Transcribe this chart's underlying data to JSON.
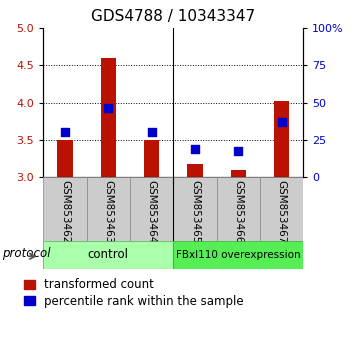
{
  "title": "GDS4788 / 10343347",
  "samples": [
    "GSM853462",
    "GSM853463",
    "GSM853464",
    "GSM853465",
    "GSM853466",
    "GSM853467"
  ],
  "red_bar_tops": [
    3.5,
    4.6,
    3.5,
    3.17,
    3.1,
    4.02
  ],
  "blue_square_y": [
    3.6,
    3.93,
    3.6,
    3.37,
    3.35,
    3.74
  ],
  "y_min": 3.0,
  "y_max": 5.0,
  "y_ticks_left": [
    3.0,
    3.5,
    4.0,
    4.5,
    5.0
  ],
  "y_ticks_right_labels": [
    "0",
    "25",
    "50",
    "75",
    "100%"
  ],
  "y_ticks_right_vals": [
    0,
    25,
    50,
    75,
    100
  ],
  "group_control_color": "#aaffaa",
  "group_overexp_color": "#55ee55",
  "group_labels": [
    "control",
    "FBxl110 overexpression"
  ],
  "bar_color": "#bb1100",
  "blue_color": "#0000cc",
  "bar_width": 0.35,
  "blue_size": 40,
  "protocol_label": "protocol",
  "legend_red": "transformed count",
  "legend_blue": "percentile rank within the sample",
  "title_fontsize": 11,
  "tick_fontsize": 8,
  "label_fontsize": 8.5,
  "sample_label_fontsize": 7.5
}
